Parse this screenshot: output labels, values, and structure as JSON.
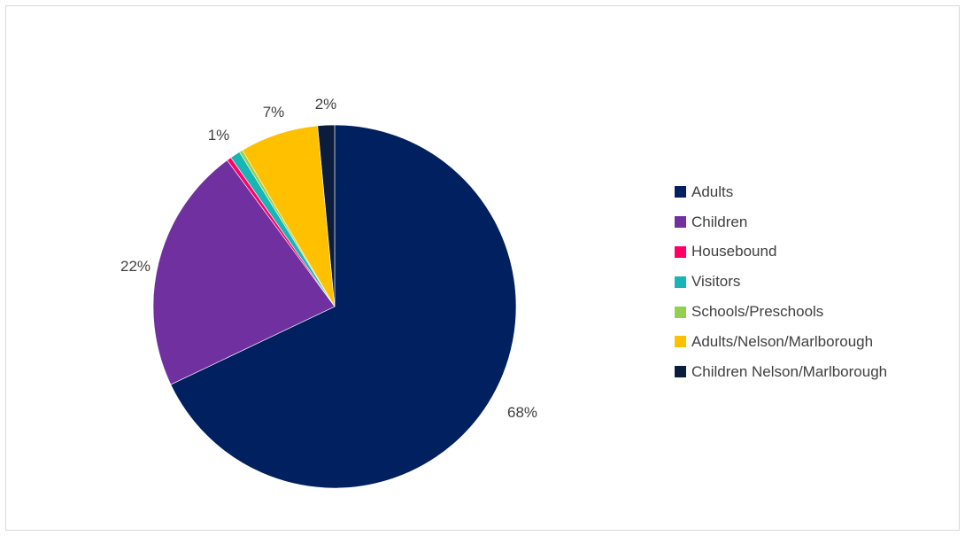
{
  "chart_data": {
    "type": "pie",
    "categories": [
      "Adults",
      "Children",
      "Housebound",
      "Visitors",
      "Schools/Preschools",
      "Adults/Nelson/Marlborough",
      "Children Nelson/Marlborough"
    ],
    "values": [
      68,
      22,
      0.4,
      0.9,
      0.3,
      7,
      1.5
    ],
    "data_labels": [
      "68%",
      "22%",
      "",
      "1%",
      "",
      "7%",
      "2%"
    ],
    "colors": [
      "#002060",
      "#7030a0",
      "#ff0066",
      "#17b5b5",
      "#92d050",
      "#ffc000",
      "#0c1c3c"
    ],
    "start_angle_deg": 0,
    "direction": "clockwise",
    "legend_position": "right"
  }
}
